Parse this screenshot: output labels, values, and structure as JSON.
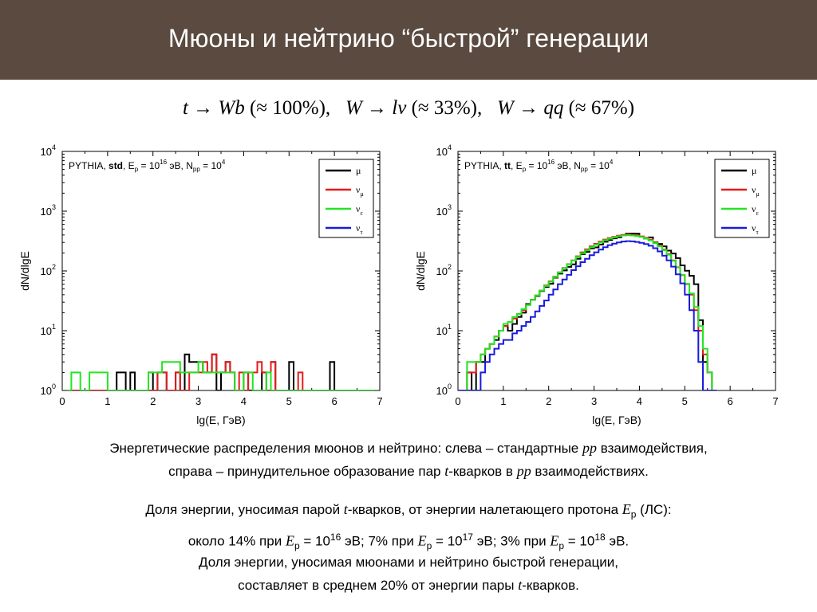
{
  "title": "Мюоны и нейтрино “быстрой” генерации",
  "formula": {
    "t": "t",
    "wb": "Wb",
    "p1": "(≈ 100%),",
    "w1": "W",
    "lv": "lν",
    "p2": "(≈ 33%),",
    "w2": "W",
    "qq": "qq",
    "p3": "(≈ 67%)",
    "arrow": "→"
  },
  "caption1": {
    "line1_a": "Энергетические распределения мюонов и нейтрино: слева – стандартные ",
    "pp": "pp",
    "line1_b": " взаимодействия,",
    "line2_a": "справа – принудительное образование пар ",
    "t": "t",
    "line2_b": "-кварков в ",
    "line2_c": " взаимодействиях."
  },
  "caption2": {
    "line1_a": "Доля энергии, уносимая парой ",
    "t": "t",
    "line1_b": "-кварков, от энергии налетающего протона ",
    "E": "E",
    "p": "p",
    "line1_c": " (ЛС):",
    "line2_a": "около 14% при ",
    "eq1": " = 10",
    "exp16": "16",
    "ev1": " эВ; 7% при ",
    "eq2": " = 10",
    "exp17": "17",
    "ev2": " эВ; 3% при ",
    "eq3": " = 10",
    "exp18": "18",
    "ev3": " эВ."
  },
  "caption3": {
    "line1": "Доля энергии, уносимая мюонами и нейтрино быстрой генерации,",
    "line2_a": "составляет в среднем 20% от энергии пары ",
    "t": "t",
    "line2_b": "-кварков."
  },
  "chart_data": [
    {
      "type": "line",
      "step": true,
      "annotation": {
        "prefix": "PYTHIA, ",
        "mode": "std",
        "ep": ", E",
        "ep_sub": "p",
        "ep_val": " = 10",
        "ep_exp": "16",
        "ev": " эВ, N",
        "n_sub": "pp",
        "n_val": " = 10",
        "n_exp": "4"
      },
      "xlabel": "lg(E, ГэВ)",
      "ylabel": "dN/dlgE",
      "xlim": [
        0,
        7
      ],
      "ylim_exp": [
        0,
        4
      ],
      "y_scale": "log",
      "x_ticks": [
        "0",
        "1",
        "2",
        "3",
        "4",
        "5",
        "6",
        "7"
      ],
      "y_tick_base": "10",
      "y_tick_exps": [
        "0",
        "1",
        "2",
        "3",
        "4"
      ],
      "legend_position": "top-right",
      "series": [
        {
          "name": "μ",
          "sub": "",
          "color": "#000000",
          "x0": 0.1,
          "dx": 0.1,
          "values": [
            0,
            0,
            0,
            0,
            0,
            0,
            0,
            0,
            0,
            0,
            0,
            2,
            2,
            1,
            2,
            1,
            1,
            1,
            2,
            1,
            2,
            2,
            1,
            1,
            2,
            1,
            4,
            3,
            3,
            3,
            2,
            2,
            4,
            1,
            2,
            3,
            2,
            1,
            1,
            2,
            1,
            1,
            1,
            2,
            1,
            3,
            1,
            1,
            1,
            3,
            1,
            1,
            1,
            1,
            1,
            1,
            1,
            1,
            3,
            1,
            1,
            1,
            1,
            1,
            1,
            1,
            1,
            1
          ]
        },
        {
          "name": "ν",
          "sub": "μ",
          "color": "#e8191c",
          "x0": 0.1,
          "dx": 0.1,
          "values": [
            0,
            0,
            0,
            0,
            0,
            0,
            0,
            0,
            0,
            0,
            0,
            0,
            0,
            0,
            0,
            1,
            1,
            1,
            1,
            1,
            2,
            2,
            1,
            1,
            2,
            1,
            1,
            2,
            2,
            2,
            3,
            2,
            4,
            2,
            2,
            3,
            2,
            1,
            2,
            1,
            2,
            2,
            3,
            2,
            1,
            3,
            1,
            1,
            1,
            1,
            1,
            2,
            1,
            1,
            1,
            1,
            1,
            1,
            1,
            1,
            1,
            1,
            1,
            1,
            1,
            1,
            1,
            1
          ]
        },
        {
          "name": "ν",
          "sub": "ε",
          "color": "#22e622",
          "x0": 0.1,
          "dx": 0.1,
          "values": [
            0,
            2,
            2,
            1,
            1,
            2,
            2,
            2,
            2,
            1,
            1,
            1,
            1,
            1,
            1,
            1,
            1,
            1,
            2,
            2,
            2,
            3,
            3,
            3,
            3,
            2,
            2,
            2,
            2,
            3,
            2,
            2,
            2,
            2,
            2,
            2,
            2,
            1,
            1,
            2,
            2,
            1,
            1,
            1,
            2,
            1,
            1,
            1,
            1,
            1,
            1,
            1,
            1,
            1,
            1,
            1,
            1,
            1,
            1,
            1,
            1,
            1,
            1,
            1,
            1,
            1,
            1,
            1
          ]
        },
        {
          "name": "ν",
          "sub": "τ",
          "color": "#1a1adc",
          "x0": 0.1,
          "dx": 0.1,
          "values": []
        }
      ]
    },
    {
      "type": "line",
      "step": true,
      "annotation": {
        "prefix": "PYTHIA, ",
        "mode": "tt",
        "ep": ", E",
        "ep_sub": "p",
        "ep_val": " = 10",
        "ep_exp": "16",
        "ev": " эВ, N",
        "n_sub": "pp",
        "n_val": " = 10",
        "n_exp": "4"
      },
      "xlabel": "lg(E, ГэВ)",
      "ylabel": "dN/dlgE",
      "xlim": [
        0,
        7
      ],
      "ylim_exp": [
        0,
        4
      ],
      "y_scale": "log",
      "x_ticks": [
        "0",
        "1",
        "2",
        "3",
        "4",
        "5",
        "6",
        "7"
      ],
      "y_tick_base": "10",
      "y_tick_exps": [
        "0",
        "1",
        "2",
        "3",
        "4"
      ],
      "legend_position": "top-right",
      "series": [
        {
          "name": "μ",
          "sub": "",
          "color": "#000000",
          "x0": 0.0,
          "dx": 0.1,
          "values": [
            1,
            1,
            2,
            1,
            3,
            3,
            5,
            6,
            7,
            10,
            12,
            10,
            13,
            17,
            20,
            28,
            33,
            38,
            46,
            54,
            61,
            77,
            90,
            102,
            117,
            129,
            160,
            191,
            208,
            238,
            247,
            276,
            308,
            328,
            351,
            364,
            393,
            420,
            422,
            421,
            376,
            349,
            364,
            302,
            283,
            258,
            219,
            196,
            164,
            124,
            101,
            83,
            60,
            15,
            3,
            2,
            1
          ]
        },
        {
          "name": "ν",
          "sub": "μ",
          "color": "#e8191c",
          "x0": 0.0,
          "dx": 0.1,
          "values": [
            1,
            1,
            2,
            2,
            3,
            4,
            5,
            6,
            8,
            10,
            12,
            14,
            16,
            19,
            22,
            27,
            33,
            39,
            47,
            57,
            67,
            80,
            95,
            112,
            130,
            150,
            176,
            205,
            230,
            258,
            284,
            310,
            335,
            355,
            372,
            388,
            400,
            405,
            400,
            392,
            378,
            358,
            333,
            300,
            265,
            228,
            191,
            150,
            115,
            85,
            60,
            40,
            22,
            10,
            4,
            2,
            1
          ]
        },
        {
          "name": "ν",
          "sub": "ε",
          "color": "#22e622",
          "x0": 0.0,
          "dx": 0.1,
          "values": [
            1,
            1,
            3,
            3,
            3,
            4,
            5,
            6,
            8,
            10,
            13,
            14,
            17,
            19,
            23,
            27,
            33,
            39,
            47,
            56,
            66,
            79,
            94,
            111,
            129,
            149,
            172,
            198,
            222,
            250,
            275,
            301,
            326,
            346,
            364,
            380,
            392,
            397,
            392,
            384,
            370,
            350,
            324,
            292,
            258,
            222,
            186,
            148,
            114,
            85,
            61,
            42,
            25,
            12,
            5,
            2,
            1
          ]
        },
        {
          "name": "ν",
          "sub": "τ",
          "color": "#1a1adc",
          "x0": 0.0,
          "dx": 0.1,
          "values": [
            0,
            0,
            0,
            0,
            1,
            2,
            3,
            4,
            5,
            6,
            7,
            7,
            9,
            10,
            12,
            14,
            17,
            21,
            26,
            32,
            40,
            49,
            60,
            72,
            86,
            103,
            120,
            140,
            160,
            183,
            205,
            228,
            250,
            270,
            287,
            300,
            310,
            315,
            312,
            306,
            296,
            282,
            264,
            240,
            212,
            180,
            150,
            118,
            88,
            62,
            40,
            22,
            10,
            3,
            1,
            1,
            1
          ]
        }
      ]
    }
  ]
}
